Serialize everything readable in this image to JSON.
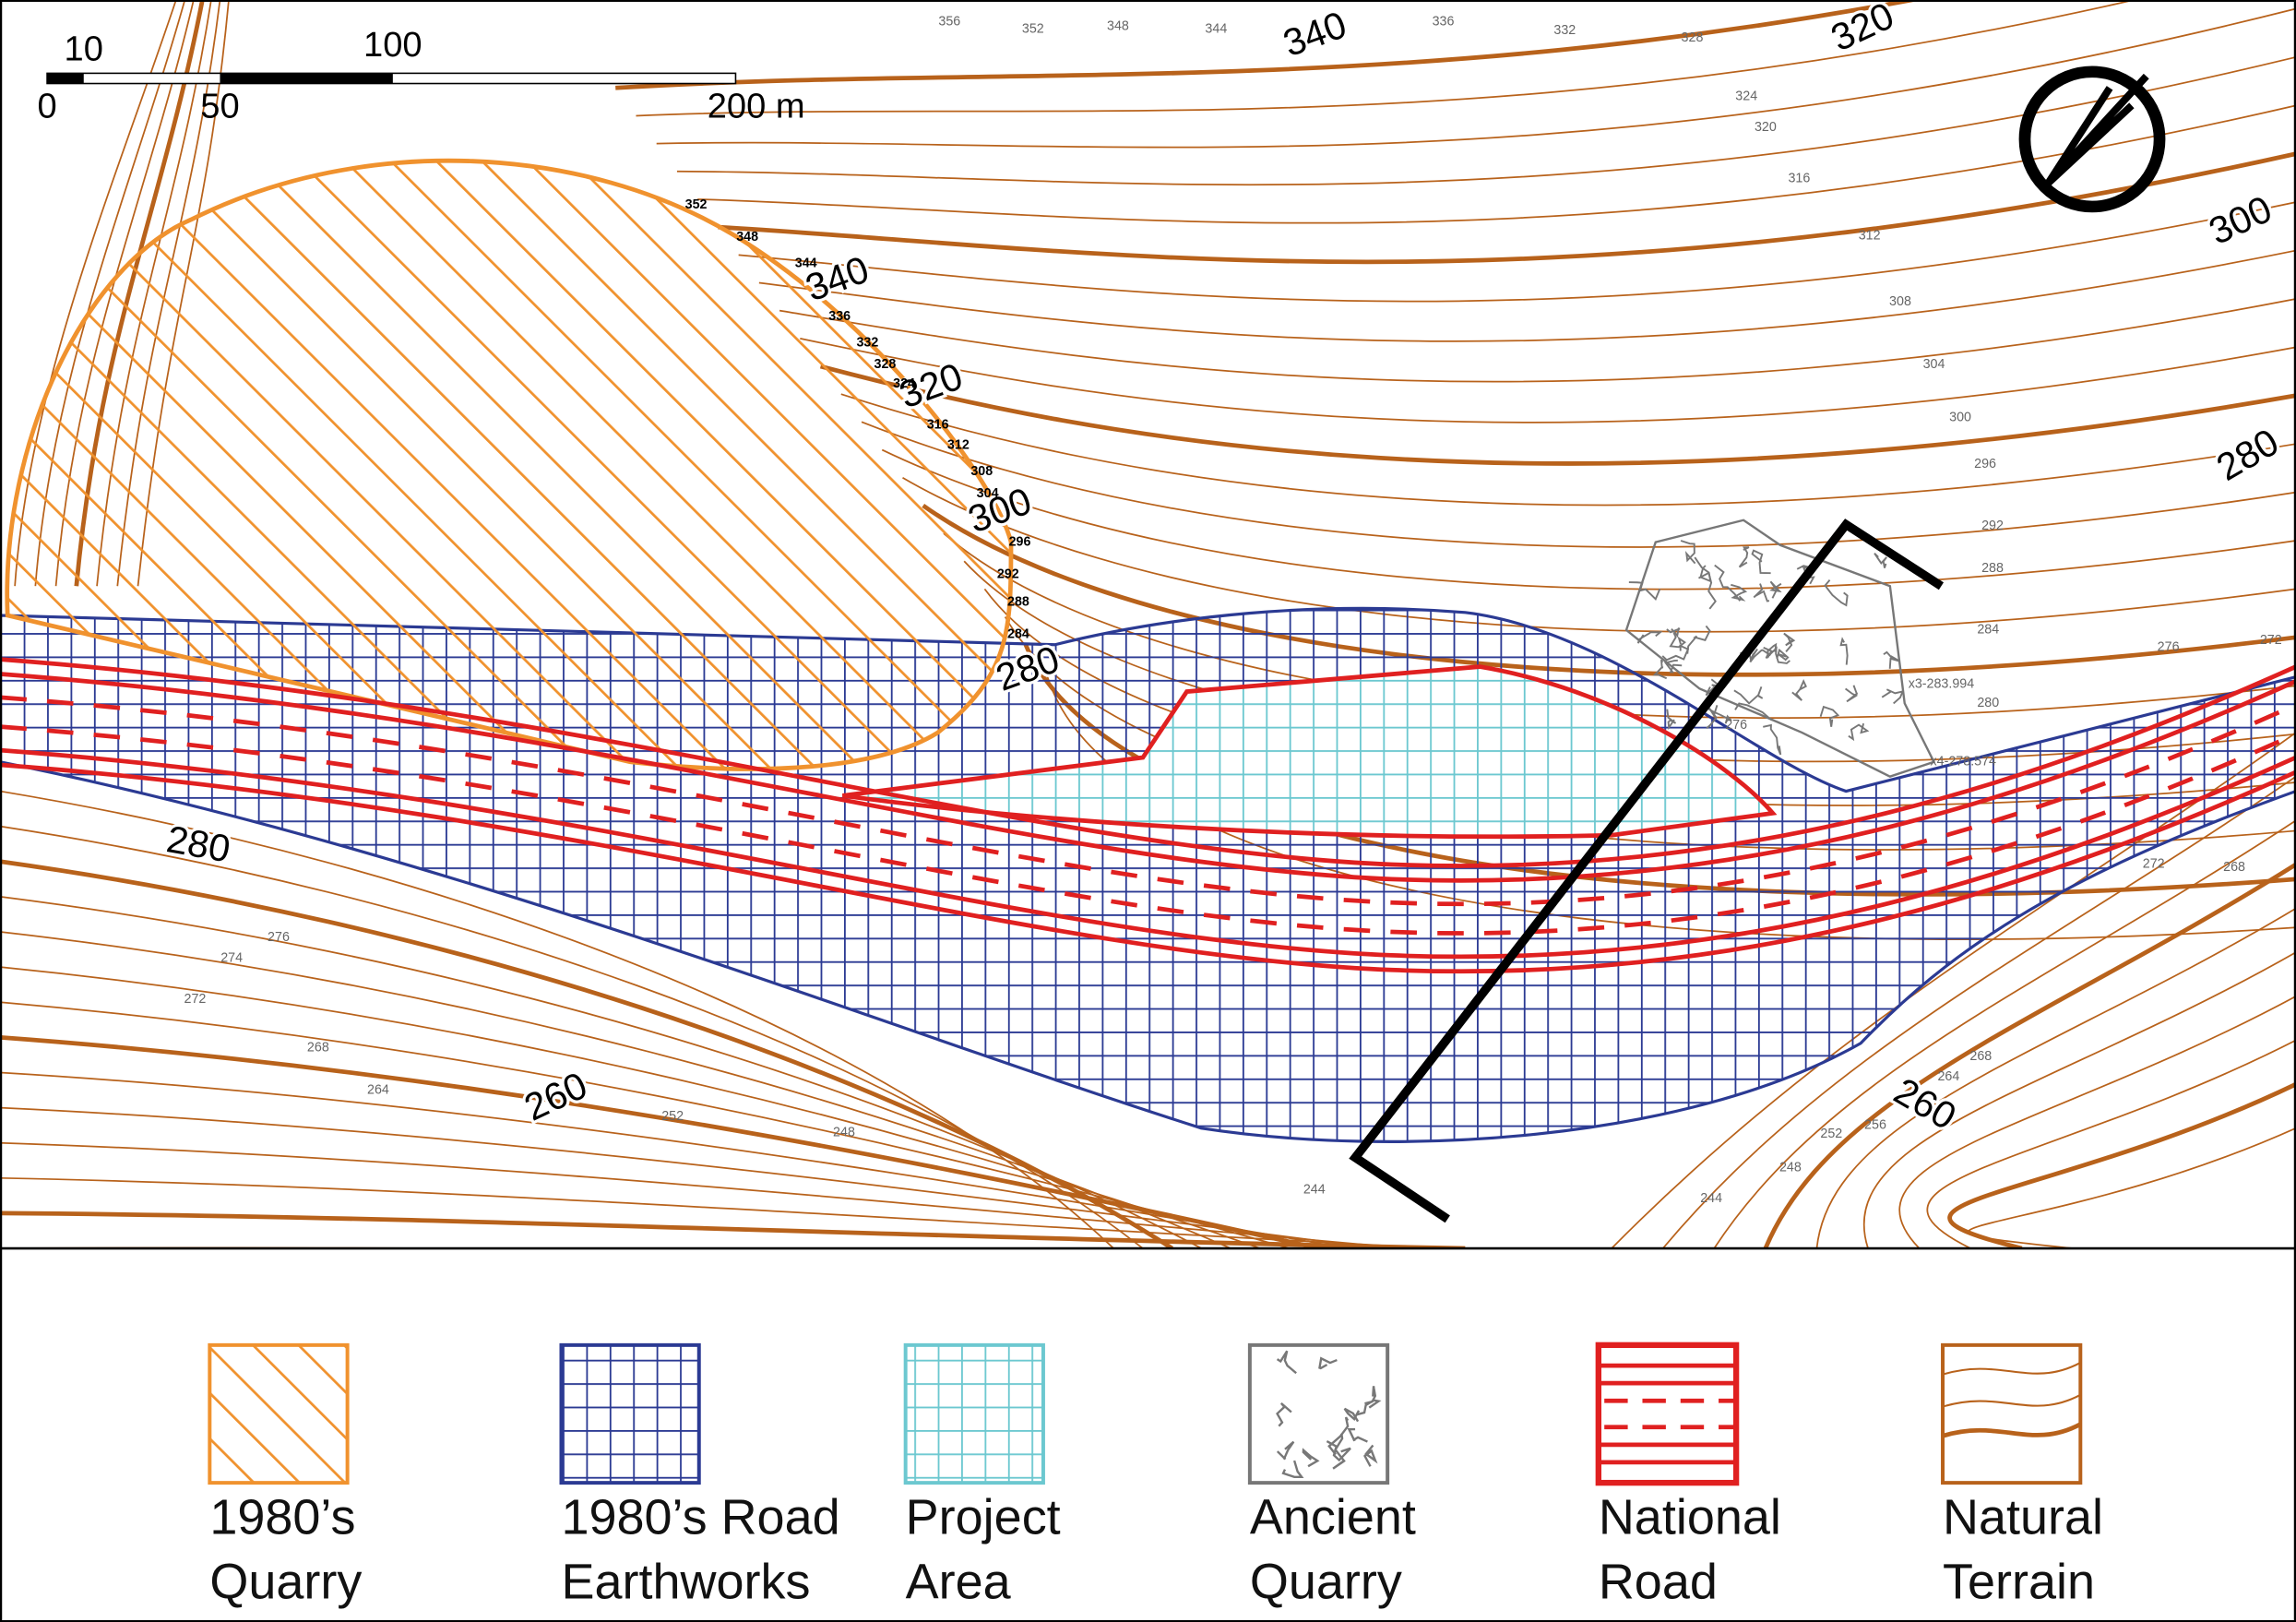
{
  "scale_bar": {
    "labels": [
      "10",
      "100",
      "0",
      "50",
      "200 m"
    ]
  },
  "contour_labels": [
    "340",
    "320",
    "300",
    "280",
    "340",
    "320",
    "300",
    "280",
    "280",
    "260",
    "260",
    "356",
    "352",
    "348",
    "344",
    "336",
    "332",
    "328",
    "324",
    "320",
    "316",
    "312",
    "308",
    "304",
    "300",
    "296",
    "292",
    "288",
    "284",
    "276",
    "272",
    "280",
    "276",
    "272",
    "268",
    "276",
    "274",
    "272",
    "268",
    "264",
    "252",
    "248",
    "244",
    "244",
    "248",
    "252",
    "256",
    "264",
    "268",
    "352",
    "348",
    "344",
    "336",
    "332",
    "328",
    "324",
    "316",
    "312",
    "308",
    "304",
    "296",
    "292",
    "288",
    "284",
    "x3-283.994",
    "x4-278.574"
  ],
  "legend": [
    {
      "lines": [
        "1980’s",
        "Quarry"
      ]
    },
    {
      "lines": [
        "1980’s Road",
        "Earthworks"
      ]
    },
    {
      "lines": [
        "Project",
        "Area"
      ]
    },
    {
      "lines": [
        "Ancient",
        "Quarry"
      ]
    },
    {
      "lines": [
        "National",
        "Road"
      ]
    },
    {
      "lines": [
        "Natural",
        "Terrain"
      ]
    }
  ]
}
